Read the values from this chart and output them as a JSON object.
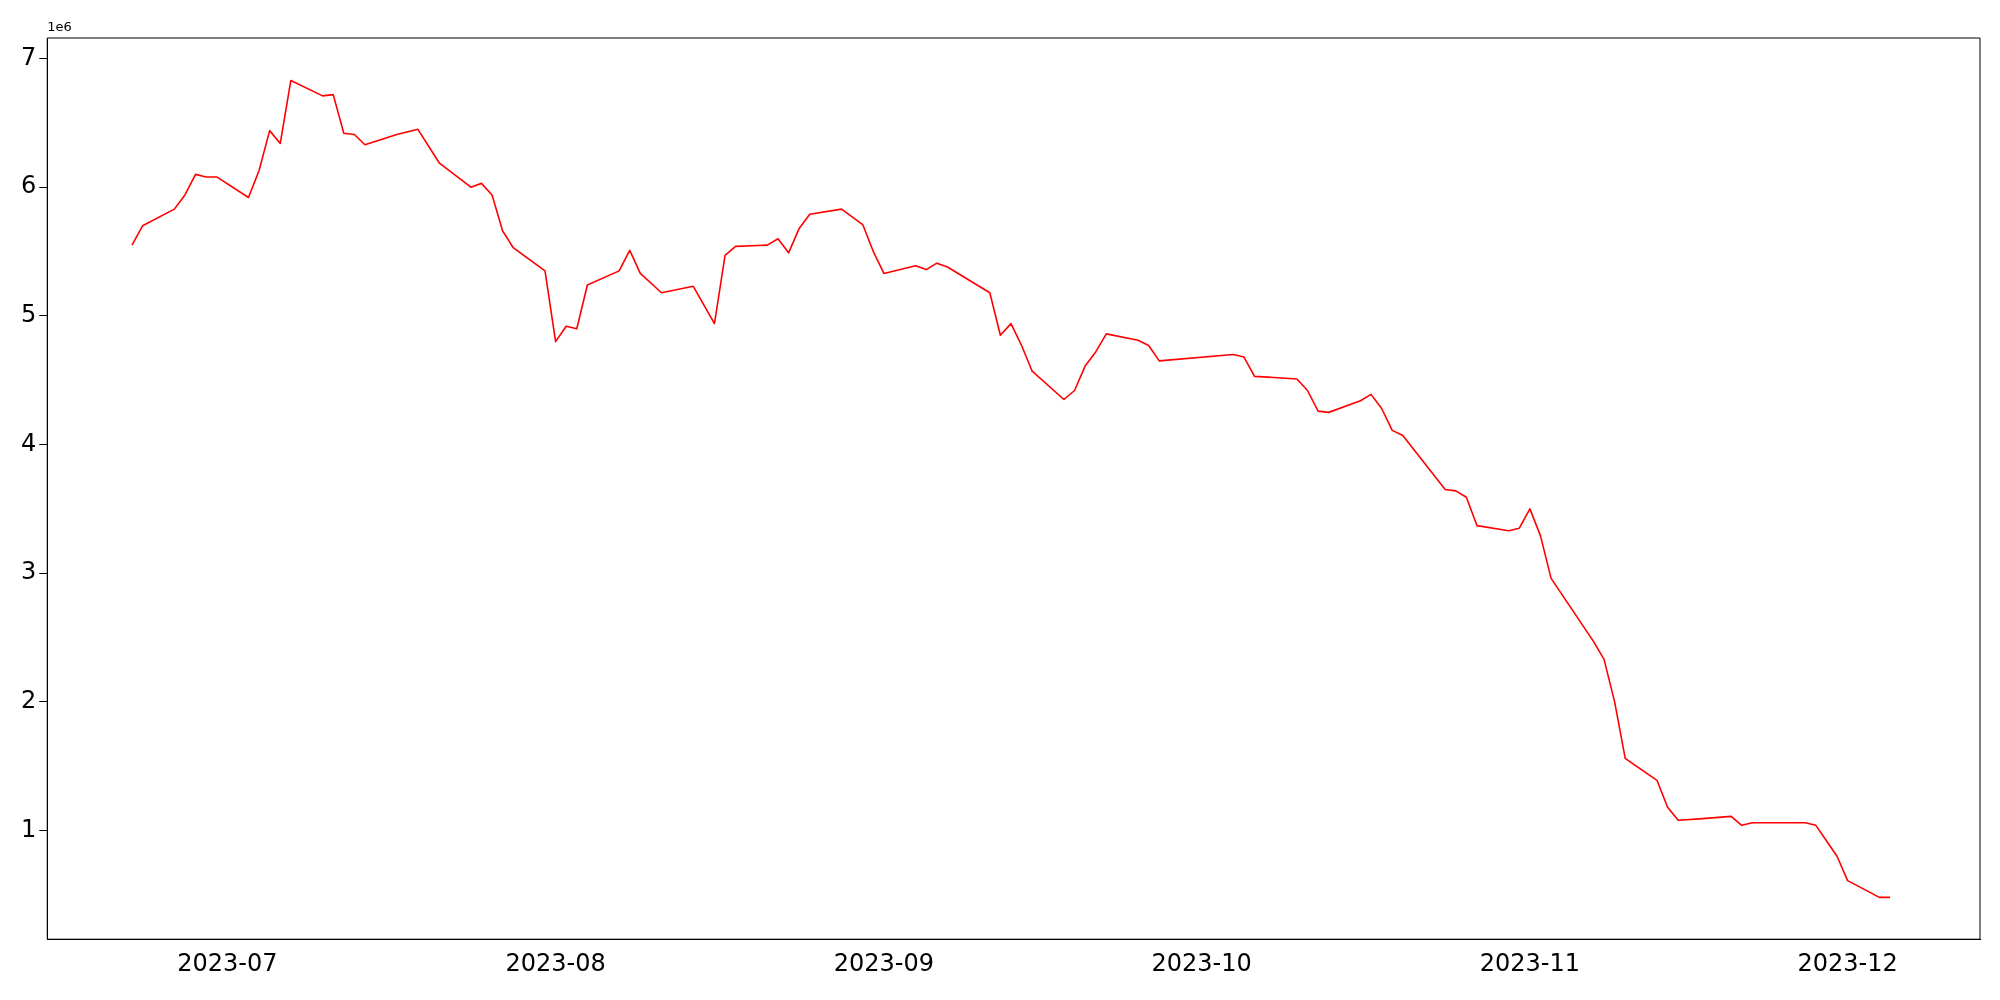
{
  "chart_data": {
    "type": "line",
    "annotations": [
      "1e6"
    ],
    "x": [
      "2023-06-22",
      "2023-06-23",
      "2023-06-26",
      "2023-06-27",
      "2023-06-28",
      "2023-06-29",
      "2023-06-30",
      "2023-07-03",
      "2023-07-04",
      "2023-07-05",
      "2023-07-06",
      "2023-07-07",
      "2023-07-10",
      "2023-07-11",
      "2023-07-12",
      "2023-07-13",
      "2023-07-14",
      "2023-07-17",
      "2023-07-19",
      "2023-07-21",
      "2023-07-24",
      "2023-07-25",
      "2023-07-26",
      "2023-07-27",
      "2023-07-28",
      "2023-07-31",
      "2023-08-01",
      "2023-08-02",
      "2023-08-03",
      "2023-08-04",
      "2023-08-07",
      "2023-08-08",
      "2023-08-09",
      "2023-08-11",
      "2023-08-14",
      "2023-08-16",
      "2023-08-17",
      "2023-08-18",
      "2023-08-21",
      "2023-08-22",
      "2023-08-23",
      "2023-08-24",
      "2023-08-25",
      "2023-08-28",
      "2023-08-30",
      "2023-08-31",
      "2023-09-01",
      "2023-09-04",
      "2023-09-05",
      "2023-09-06",
      "2023-09-07",
      "2023-09-11",
      "2023-09-12",
      "2023-09-13",
      "2023-09-14",
      "2023-09-15",
      "2023-09-18",
      "2023-09-19",
      "2023-09-20",
      "2023-09-21",
      "2023-09-22",
      "2023-09-25",
      "2023-09-26",
      "2023-09-27",
      "2023-10-04",
      "2023-10-05",
      "2023-10-06",
      "2023-10-10",
      "2023-10-11",
      "2023-10-12",
      "2023-10-13",
      "2023-10-16",
      "2023-10-17",
      "2023-10-18",
      "2023-10-19",
      "2023-10-20",
      "2023-10-24",
      "2023-10-25",
      "2023-10-26",
      "2023-10-27",
      "2023-10-30",
      "2023-10-31",
      "2023-11-01",
      "2023-11-02",
      "2023-11-03",
      "2023-11-07",
      "2023-11-08",
      "2023-11-09",
      "2023-11-10",
      "2023-11-13",
      "2023-11-14",
      "2023-11-15",
      "2023-11-17",
      "2023-11-20",
      "2023-11-21",
      "2023-11-22",
      "2023-11-27",
      "2023-11-28",
      "2023-11-29",
      "2023-11-30",
      "2023-12-01",
      "2023-12-04",
      "2023-12-05"
    ],
    "series": [
      {
        "color": "#ff0000",
        "values": [
          5.55,
          5.7,
          5.83,
          5.94,
          6.1,
          6.08,
          6.08,
          5.92,
          6.13,
          6.44,
          6.34,
          6.83,
          6.71,
          6.72,
          6.42,
          6.41,
          6.33,
          6.41,
          6.45,
          6.19,
          6.0,
          6.03,
          5.94,
          5.66,
          5.53,
          5.35,
          4.8,
          4.92,
          4.9,
          5.24,
          5.35,
          5.51,
          5.33,
          5.18,
          5.23,
          4.94,
          5.47,
          5.54,
          5.55,
          5.6,
          5.49,
          5.68,
          5.79,
          5.83,
          5.71,
          5.5,
          5.33,
          5.39,
          5.36,
          5.41,
          5.38,
          5.18,
          4.85,
          4.94,
          4.77,
          4.57,
          4.35,
          4.42,
          4.61,
          4.72,
          4.86,
          4.81,
          4.77,
          4.65,
          4.7,
          4.68,
          4.53,
          4.51,
          4.42,
          4.26,
          4.25,
          4.34,
          4.39,
          4.28,
          4.11,
          4.07,
          3.65,
          3.64,
          3.59,
          3.37,
          3.33,
          3.35,
          3.5,
          3.29,
          2.96,
          2.47,
          2.33,
          2.0,
          1.56,
          1.39,
          1.18,
          1.08,
          1.09,
          1.11,
          1.04,
          1.06,
          1.06,
          1.04,
          0.92,
          0.8,
          0.61,
          0.48,
          0.48
        ]
      }
    ],
    "xlim": [
      "2023-06-14T00:00",
      "2023-12-13T12:00"
    ],
    "xticks": [
      {
        "value": "2023-07-01",
        "label": "2023-07"
      },
      {
        "value": "2023-08-01",
        "label": "2023-08"
      },
      {
        "value": "2023-09-01",
        "label": "2023-09"
      },
      {
        "value": "2023-10-01",
        "label": "2023-10"
      },
      {
        "value": "2023-11-01",
        "label": "2023-11"
      },
      {
        "value": "2023-12-01",
        "label": "2023-12"
      }
    ],
    "ylim": [
      0.155,
      7.16
    ],
    "yticks": [
      1,
      2,
      3,
      4,
      5,
      6,
      7
    ],
    "grid": false,
    "legend": false,
    "line_style": "solid",
    "marker": "none"
  }
}
